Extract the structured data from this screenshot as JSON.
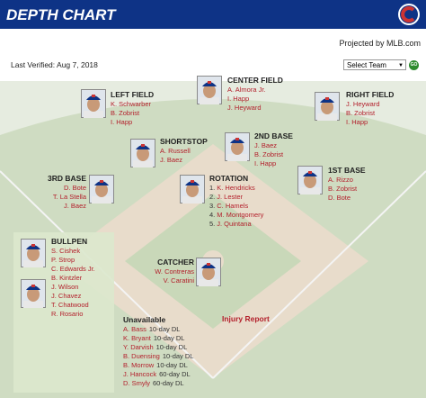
{
  "header": {
    "title": "DEPTH CHART",
    "projected": "Projected by MLB.com",
    "last_verified": "Last Verified: Aug 7, 2018",
    "select": "Select Team",
    "go": "GO"
  },
  "positions": [
    {
      "label": "LEFT FIELD",
      "players": [
        "K. Schwarber",
        "B. Zobrist",
        "I. Happ"
      ]
    },
    {
      "label": "CENTER FIELD",
      "players": [
        "A. Almora Jr.",
        "I. Happ",
        "J. Heyward"
      ]
    },
    {
      "label": "RIGHT FIELD",
      "players": [
        "J. Heyward",
        "B. Zobrist",
        "I. Happ"
      ]
    },
    {
      "label": "SHORTSTOP",
      "players": [
        "A. Russell",
        "J. Baez"
      ]
    },
    {
      "label": "2ND BASE",
      "players": [
        "J. Baez",
        "B. Zobrist",
        "I. Happ"
      ]
    },
    {
      "label": "3RD BASE",
      "players": [
        "D. Bote",
        "T. La Stella",
        "J. Baez"
      ]
    },
    {
      "label": "ROTATION",
      "numbers": [
        "1.",
        "2.",
        "3.",
        "4.",
        "5."
      ],
      "players": [
        "K. Hendricks",
        "J. Lester",
        "C. Hamels",
        "M. Montgomery",
        "J. Quintana"
      ]
    },
    {
      "label": "1ST BASE",
      "players": [
        "A. Rizzo",
        "B. Zobrist",
        "D. Bote"
      ]
    },
    {
      "label": "CATCHER",
      "players": [
        "W. Contreras",
        "V. Caratini"
      ]
    }
  ],
  "bullpen": {
    "label": "BULLPEN",
    "players": [
      "S. Cishek",
      "P. Strop",
      "C. Edwards Jr.",
      "B. Kintzler",
      "J. Wilson",
      "J. Chavez",
      "T. Chatwood",
      "R. Rosario"
    ]
  },
  "unavailable": {
    "label": "Unavailable",
    "players": [
      {
        "name": "A. Bass",
        "status": "10-day DL"
      },
      {
        "name": "K. Bryant",
        "status": "10-day DL"
      },
      {
        "name": "Y. Darvish",
        "status": "10-day DL"
      },
      {
        "name": "B. Duensing",
        "status": "10-day DL"
      },
      {
        "name": "B. Morrow",
        "status": "10-day DL"
      },
      {
        "name": "J. Hancock",
        "status": "60-day DL"
      },
      {
        "name": "D. Smyly",
        "status": "60-day DL"
      }
    ]
  },
  "injury_report": "Injury Report"
}
